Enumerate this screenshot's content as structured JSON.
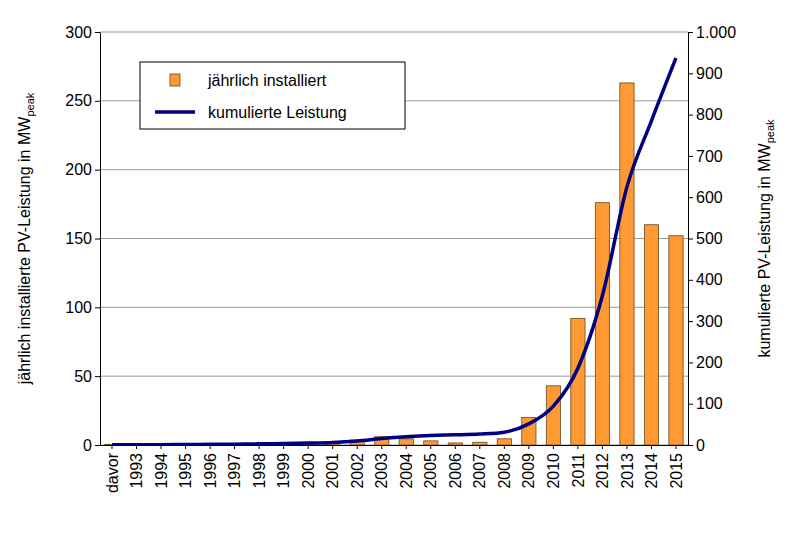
{
  "chart_data": {
    "type": "bar",
    "categories": [
      "davor",
      "1993",
      "1994",
      "1995",
      "1996",
      "1997",
      "1998",
      "1999",
      "2000",
      "2001",
      "2002",
      "2003",
      "2004",
      "2005",
      "2006",
      "2007",
      "2008",
      "2009",
      "2010",
      "2011",
      "2012",
      "2013",
      "2014",
      "2015"
    ],
    "ylabel": {
      "text": "jährlich installierte PV-Leistung in MW",
      "subscript": "peak"
    },
    "y2label": {
      "text": "kumulierte PV-Leistung in MW",
      "subscript": "peak"
    },
    "ylim": [
      0,
      300
    ],
    "yticks": [
      0,
      50,
      100,
      150,
      200,
      250,
      300
    ],
    "y2lim": [
      0,
      1000
    ],
    "y2ticks": [
      0,
      100,
      200,
      300,
      400,
      500,
      600,
      700,
      800,
      900,
      {
        "value": 1000,
        "label": "1.000"
      }
    ],
    "grid": true,
    "legend": "top-left",
    "series": [
      {
        "name": "jährlich installiert",
        "type": "bar",
        "color": "#ff9933",
        "values": [
          0.5,
          0.2,
          0.2,
          0.3,
          0.4,
          0.5,
          0.7,
          0.8,
          1,
          1.5,
          3.5,
          6,
          4.5,
          3,
          1.5,
          2,
          4.5,
          20,
          43,
          92,
          176,
          263,
          160,
          152
        ]
      },
      {
        "name": "kumulierte Leistung",
        "type": "line",
        "axis": "y2",
        "color": "#000080",
        "line_style": "smooth",
        "values": [
          0.5,
          0.7,
          0.9,
          1.2,
          1.6,
          2.1,
          2.8,
          3.6,
          4.6,
          6.1,
          9.6,
          15.6,
          20.1,
          23.1,
          24.6,
          26.6,
          31.1,
          51.1,
          94.1,
          186,
          362,
          625,
          785,
          937
        ]
      }
    ]
  }
}
